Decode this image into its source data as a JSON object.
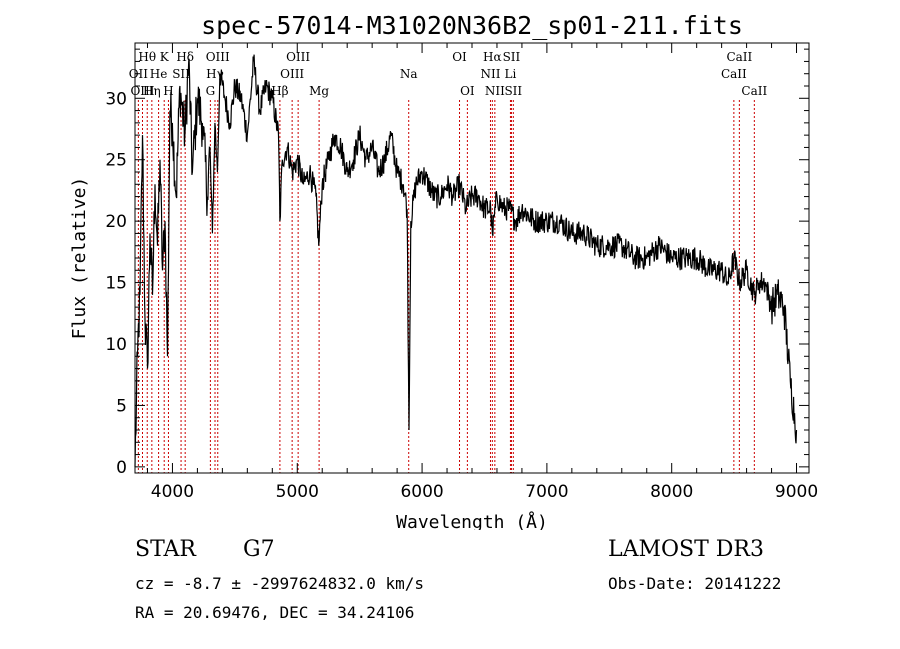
{
  "chart_data": {
    "type": "line",
    "title": "spec-57014-M31020N36B2_sp01-211.fits",
    "xlabel": "Wavelength (Å)",
    "ylabel": "Flux (relative)",
    "xlim": [
      3700,
      9100
    ],
    "ylim": [
      -0.5,
      34.5
    ],
    "x_ticks": [
      4000,
      5000,
      6000,
      7000,
      8000,
      9000
    ],
    "x_tick_labels": [
      "4000",
      "5000",
      "6000",
      "7000",
      "8000",
      "9000"
    ],
    "y_ticks": [
      0,
      5,
      10,
      15,
      20,
      25,
      30
    ],
    "y_tick_labels": [
      "0",
      "5",
      "10",
      "15",
      "20",
      "25",
      "30"
    ],
    "series": [
      {
        "name": "flux",
        "x": [
          3700,
          3720,
          3740,
          3760,
          3780,
          3800,
          3820,
          3840,
          3860,
          3880,
          3900,
          3920,
          3940,
          3960,
          3980,
          4000,
          4030,
          4060,
          4100,
          4130,
          4160,
          4200,
          4240,
          4280,
          4300,
          4320,
          4340,
          4360,
          4380,
          4420,
          4460,
          4500,
          4550,
          4600,
          4650,
          4700,
          4750,
          4800,
          4850,
          4861,
          4880,
          4920,
          4960,
          5000,
          5050,
          5100,
          5150,
          5172,
          5200,
          5250,
          5300,
          5350,
          5400,
          5450,
          5500,
          5550,
          5600,
          5650,
          5700,
          5750,
          5800,
          5850,
          5880,
          5895,
          5910,
          5950,
          6000,
          6050,
          6100,
          6150,
          6200,
          6250,
          6300,
          6350,
          6400,
          6450,
          6500,
          6550,
          6563,
          6600,
          6650,
          6700,
          6750,
          6800,
          6900,
          7000,
          7100,
          7200,
          7300,
          7400,
          7500,
          7600,
          7700,
          7800,
          7900,
          8000,
          8100,
          8200,
          8300,
          8400,
          8450,
          8500,
          8542,
          8600,
          8662,
          8700,
          8750,
          8800,
          8850,
          8900,
          8950,
          9000
        ],
        "y": [
          0,
          9,
          14,
          27,
          12,
          8,
          19,
          14,
          23,
          18,
          25,
          16,
          20,
          9,
          29,
          28,
          22,
          31,
          27,
          33,
          24,
          30,
          28,
          22,
          26,
          19,
          28,
          24,
          32,
          30,
          28,
          31,
          30,
          27,
          33,
          29,
          31,
          30,
          27,
          20,
          25,
          26,
          24,
          25,
          23,
          24,
          22,
          18,
          23,
          25,
          27,
          26,
          24,
          25,
          27,
          25,
          26,
          24,
          25,
          27,
          24,
          23,
          21,
          3,
          20,
          23,
          24,
          23,
          22,
          22,
          23,
          22,
          23,
          21,
          22,
          22,
          21,
          21,
          19,
          22,
          21,
          21,
          20,
          21,
          20,
          20,
          20,
          19,
          19,
          18,
          18,
          18,
          17,
          17,
          18,
          17,
          17,
          17,
          16,
          16,
          15,
          17,
          15,
          16,
          14,
          15,
          15,
          13,
          14,
          13,
          7,
          3
        ]
      }
    ],
    "line_markers": [
      {
        "label": "Hθ",
        "wavelength": 3798,
        "row": 1
      },
      {
        "label": "OII",
        "wavelength": 3727,
        "row": 2
      },
      {
        "label": "OIII",
        "wavelength": 3760,
        "row": 3
      },
      {
        "label": "He",
        "wavelength": 3889,
        "row": 2
      },
      {
        "label": "Hη",
        "wavelength": 3835,
        "row": 3
      },
      {
        "label": "K",
        "wavelength": 3934,
        "row": 1
      },
      {
        "label": "SII",
        "wavelength": 4069,
        "row": 2
      },
      {
        "label": "H",
        "wavelength": 3968,
        "row": 3
      },
      {
        "label": "Hδ",
        "wavelength": 4102,
        "row": 1
      },
      {
        "label": "OIII",
        "wavelength": 4363,
        "row": 1
      },
      {
        "label": "Hγ",
        "wavelength": 4341,
        "row": 2
      },
      {
        "label": "G",
        "wavelength": 4304,
        "row": 3
      },
      {
        "label": "Hβ",
        "wavelength": 4861,
        "row": 3
      },
      {
        "label": "OIII",
        "wavelength": 5007,
        "row": 1
      },
      {
        "label": "OIII",
        "wavelength": 4959,
        "row": 2
      },
      {
        "label": "Mg",
        "wavelength": 5175,
        "row": 3
      },
      {
        "label": "Na",
        "wavelength": 5893,
        "row": 2
      },
      {
        "label": "OI",
        "wavelength": 6300,
        "row": 1
      },
      {
        "label": "OI",
        "wavelength": 6363,
        "row": 3
      },
      {
        "label": "Hα",
        "wavelength": 6563,
        "row": 1
      },
      {
        "label": "NII",
        "wavelength": 6548,
        "row": 2
      },
      {
        "label": "NII",
        "wavelength": 6583,
        "row": 3
      },
      {
        "label": "SII",
        "wavelength": 6716,
        "row": 1
      },
      {
        "label": "Li",
        "wavelength": 6708,
        "row": 2
      },
      {
        "label": "SII",
        "wavelength": 6731,
        "row": 3
      },
      {
        "label": "CaII",
        "wavelength": 8542,
        "row": 1
      },
      {
        "label": "CaII",
        "wavelength": 8498,
        "row": 2
      },
      {
        "label": "CaII",
        "wavelength": 8662,
        "row": 3
      }
    ]
  },
  "info": {
    "object_class": "STAR",
    "subclass": "G7",
    "survey": "LAMOST DR3",
    "redshift_line": "cz = -8.7 ± -2997624832.0 km/s",
    "obs_date_line": "Obs-Date: 20141222",
    "coords_line": "RA =  20.69476, DEC =  34.24106"
  }
}
